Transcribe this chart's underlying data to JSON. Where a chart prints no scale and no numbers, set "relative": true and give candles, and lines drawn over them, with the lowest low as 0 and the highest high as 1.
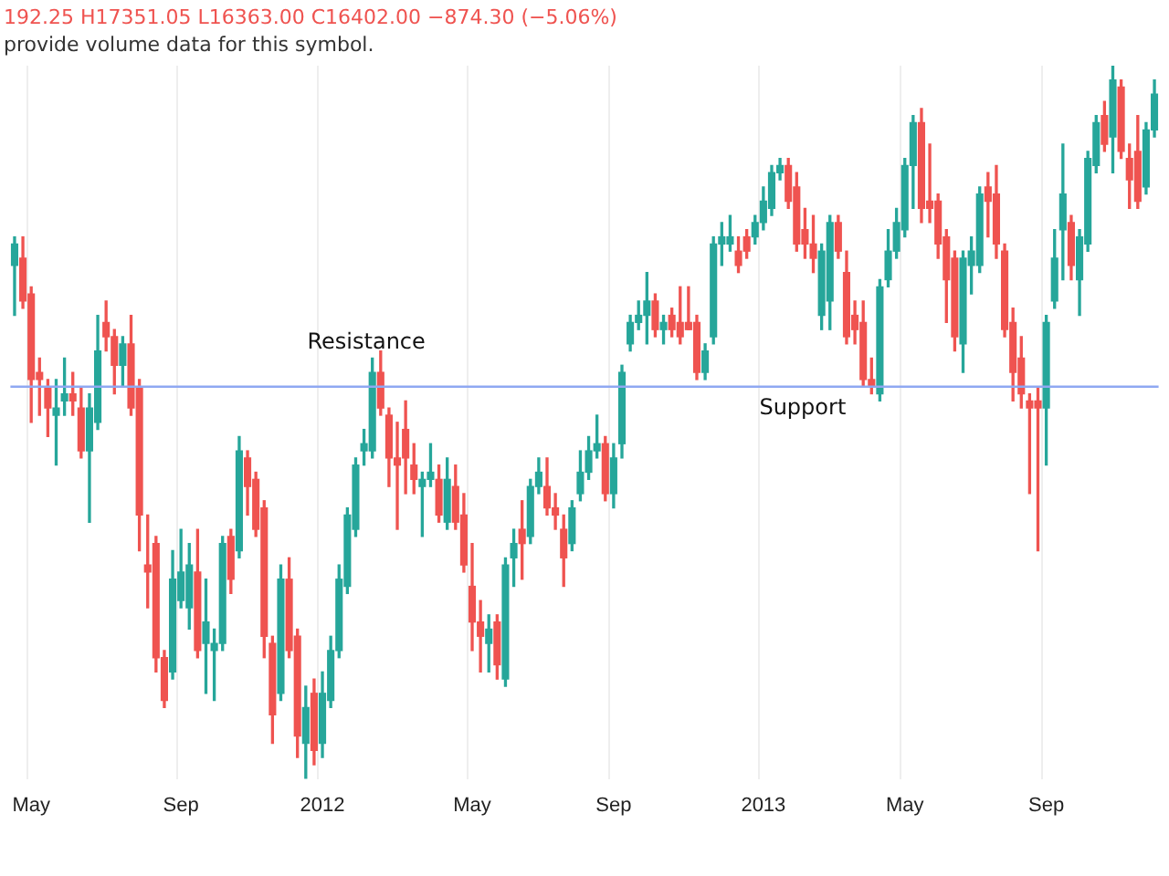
{
  "chart_data": {
    "type": "candlestick",
    "relative": true,
    "grid": "x",
    "legend": false,
    "categories": [
      null,
      null,
      "May",
      null,
      null,
      null,
      null,
      null,
      null,
      null,
      null,
      null,
      null,
      null,
      null,
      null,
      null,
      null,
      null,
      null,
      "Sep",
      null,
      null,
      null,
      null,
      null,
      null,
      null,
      null,
      null,
      null,
      null,
      null,
      null,
      null,
      null,
      null,
      "2012",
      null,
      null,
      null,
      null,
      null,
      null,
      null,
      null,
      null,
      null,
      null,
      null,
      null,
      null,
      null,
      null,
      null,
      "May",
      null,
      null,
      null,
      null,
      null,
      null,
      null,
      null,
      null,
      null,
      null,
      null,
      null,
      null,
      null,
      null,
      "Sep",
      null,
      null,
      null,
      null,
      null,
      null,
      null,
      null,
      null,
      null,
      null,
      null,
      null,
      null,
      null,
      null,
      null,
      "2013",
      null,
      null,
      null,
      null,
      null,
      null,
      null,
      null,
      null,
      null,
      null,
      null,
      null,
      null,
      null,
      null,
      "May",
      null,
      null,
      null,
      null,
      null,
      null,
      null,
      null,
      null,
      null,
      null,
      null,
      null,
      null,
      null,
      null,
      "Sep",
      null,
      null,
      null,
      null,
      null,
      null,
      null,
      null,
      null,
      null,
      null,
      null,
      null
    ],
    "ohlc": [
      [
        0.72,
        0.76,
        0.65,
        0.75
      ],
      [
        0.73,
        0.76,
        0.66,
        0.67
      ],
      [
        0.68,
        0.69,
        0.5,
        0.56
      ],
      [
        0.57,
        0.59,
        0.51,
        0.56
      ],
      [
        0.55,
        0.56,
        0.48,
        0.52
      ],
      [
        0.51,
        0.56,
        0.44,
        0.52
      ],
      [
        0.53,
        0.59,
        0.51,
        0.54
      ],
      [
        0.54,
        0.57,
        0.51,
        0.53
      ],
      [
        0.52,
        0.55,
        0.45,
        0.46
      ],
      [
        0.46,
        0.54,
        0.36,
        0.52
      ],
      [
        0.5,
        0.65,
        0.49,
        0.6
      ],
      [
        0.64,
        0.67,
        0.6,
        0.62
      ],
      [
        0.62,
        0.63,
        0.54,
        0.58
      ],
      [
        0.58,
        0.62,
        0.55,
        0.61
      ],
      [
        0.61,
        0.65,
        0.51,
        0.52
      ],
      [
        0.55,
        0.56,
        0.32,
        0.37
      ],
      [
        0.3,
        0.37,
        0.24,
        0.29
      ],
      [
        0.33,
        0.34,
        0.15,
        0.17
      ],
      [
        0.17,
        0.18,
        0.1,
        0.11
      ],
      [
        0.15,
        0.32,
        0.14,
        0.28
      ],
      [
        0.25,
        0.35,
        0.24,
        0.29
      ],
      [
        0.24,
        0.33,
        0.21,
        0.3
      ],
      [
        0.29,
        0.35,
        0.17,
        0.18
      ],
      [
        0.19,
        0.28,
        0.12,
        0.22
      ],
      [
        0.18,
        0.21,
        0.11,
        0.19
      ],
      [
        0.19,
        0.34,
        0.18,
        0.33
      ],
      [
        0.34,
        0.35,
        0.26,
        0.28
      ],
      [
        0.32,
        0.48,
        0.31,
        0.46
      ],
      [
        0.45,
        0.46,
        0.37,
        0.41
      ],
      [
        0.42,
        0.43,
        0.34,
        0.35
      ],
      [
        0.38,
        0.39,
        0.17,
        0.2
      ],
      [
        0.19,
        0.2,
        0.05,
        0.09
      ],
      [
        0.12,
        0.3,
        0.11,
        0.28
      ],
      [
        0.28,
        0.31,
        0.17,
        0.18
      ],
      [
        0.2,
        0.21,
        0.03,
        0.06
      ],
      [
        0.05,
        0.13,
        0.0,
        0.1
      ],
      [
        0.12,
        0.14,
        0.02,
        0.04
      ],
      [
        0.05,
        0.15,
        0.03,
        0.12
      ],
      [
        0.11,
        0.2,
        0.1,
        0.18
      ],
      [
        0.18,
        0.3,
        0.17,
        0.28
      ],
      [
        0.27,
        0.38,
        0.26,
        0.37
      ],
      [
        0.35,
        0.45,
        0.34,
        0.44
      ],
      [
        0.46,
        0.49,
        0.44,
        0.47
      ],
      [
        0.46,
        0.59,
        0.45,
        0.57
      ],
      [
        0.57,
        0.6,
        0.51,
        0.52
      ],
      [
        0.51,
        0.52,
        0.41,
        0.45
      ],
      [
        0.45,
        0.5,
        0.35,
        0.44
      ],
      [
        0.49,
        0.53,
        0.4,
        0.45
      ],
      [
        0.44,
        0.47,
        0.4,
        0.42
      ],
      [
        0.41,
        0.43,
        0.34,
        0.42
      ],
      [
        0.42,
        0.47,
        0.41,
        0.43
      ],
      [
        0.42,
        0.44,
        0.36,
        0.37
      ],
      [
        0.36,
        0.45,
        0.35,
        0.42
      ],
      [
        0.41,
        0.44,
        0.35,
        0.36
      ],
      [
        0.37,
        0.4,
        0.29,
        0.3
      ],
      [
        0.27,
        0.33,
        0.18,
        0.22
      ],
      [
        0.22,
        0.25,
        0.15,
        0.2
      ],
      [
        0.19,
        0.23,
        0.15,
        0.21
      ],
      [
        0.22,
        0.23,
        0.14,
        0.16
      ],
      [
        0.14,
        0.31,
        0.13,
        0.3
      ],
      [
        0.31,
        0.35,
        0.27,
        0.33
      ],
      [
        0.35,
        0.39,
        0.28,
        0.33
      ],
      [
        0.34,
        0.42,
        0.33,
        0.41
      ],
      [
        0.41,
        0.45,
        0.4,
        0.43
      ],
      [
        0.41,
        0.45,
        0.37,
        0.38
      ],
      [
        0.38,
        0.4,
        0.35,
        0.37
      ],
      [
        0.35,
        0.37,
        0.27,
        0.31
      ],
      [
        0.33,
        0.39,
        0.32,
        0.38
      ],
      [
        0.4,
        0.46,
        0.39,
        0.43
      ],
      [
        0.43,
        0.48,
        0.42,
        0.46
      ],
      [
        0.46,
        0.51,
        0.45,
        0.47
      ],
      [
        0.47,
        0.48,
        0.39,
        0.4
      ],
      [
        0.4,
        0.47,
        0.38,
        0.45
      ],
      [
        0.47,
        0.58,
        0.45,
        0.57
      ],
      [
        0.61,
        0.65,
        0.6,
        0.64
      ],
      [
        0.64,
        0.67,
        0.63,
        0.65
      ],
      [
        0.65,
        0.71,
        0.61,
        0.67
      ],
      [
        0.67,
        0.68,
        0.62,
        0.63
      ],
      [
        0.63,
        0.65,
        0.61,
        0.64
      ],
      [
        0.65,
        0.66,
        0.62,
        0.63
      ],
      [
        0.64,
        0.69,
        0.61,
        0.62
      ],
      [
        0.64,
        0.69,
        0.63,
        0.63
      ],
      [
        0.64,
        0.65,
        0.56,
        0.57
      ],
      [
        0.57,
        0.61,
        0.56,
        0.6
      ],
      [
        0.62,
        0.76,
        0.61,
        0.75
      ],
      [
        0.75,
        0.78,
        0.72,
        0.76
      ],
      [
        0.75,
        0.79,
        0.74,
        0.76
      ],
      [
        0.74,
        0.76,
        0.71,
        0.72
      ],
      [
        0.76,
        0.77,
        0.73,
        0.74
      ],
      [
        0.76,
        0.79,
        0.75,
        0.78
      ],
      [
        0.78,
        0.83,
        0.77,
        0.81
      ],
      [
        0.8,
        0.86,
        0.79,
        0.85
      ],
      [
        0.85,
        0.87,
        0.84,
        0.86
      ],
      [
        0.86,
        0.87,
        0.8,
        0.81
      ],
      [
        0.83,
        0.85,
        0.74,
        0.75
      ],
      [
        0.77,
        0.8,
        0.73,
        0.75
      ],
      [
        0.75,
        0.79,
        0.71,
        0.73
      ],
      [
        0.65,
        0.75,
        0.63,
        0.74
      ],
      [
        0.67,
        0.79,
        0.63,
        0.78
      ],
      [
        0.78,
        0.79,
        0.73,
        0.74
      ],
      [
        0.71,
        0.74,
        0.61,
        0.62
      ],
      [
        0.65,
        0.67,
        0.61,
        0.63
      ],
      [
        0.64,
        0.67,
        0.55,
        0.56
      ],
      [
        0.56,
        0.59,
        0.54,
        0.55
      ],
      [
        0.54,
        0.7,
        0.53,
        0.69
      ],
      [
        0.7,
        0.77,
        0.69,
        0.74
      ],
      [
        0.74,
        0.8,
        0.73,
        0.78
      ],
      [
        0.77,
        0.87,
        0.76,
        0.86
      ],
      [
        0.86,
        0.93,
        0.8,
        0.92
      ],
      [
        0.92,
        0.94,
        0.78,
        0.8
      ],
      [
        0.81,
        0.89,
        0.78,
        0.8
      ],
      [
        0.81,
        0.82,
        0.73,
        0.75
      ],
      [
        0.76,
        0.77,
        0.64,
        0.7
      ],
      [
        0.73,
        0.74,
        0.6,
        0.62
      ],
      [
        0.61,
        0.74,
        0.57,
        0.73
      ],
      [
        0.72,
        0.76,
        0.68,
        0.74
      ],
      [
        0.72,
        0.83,
        0.71,
        0.82
      ],
      [
        0.83,
        0.85,
        0.76,
        0.81
      ],
      [
        0.82,
        0.86,
        0.73,
        0.75
      ],
      [
        0.74,
        0.75,
        0.62,
        0.63
      ],
      [
        0.64,
        0.66,
        0.53,
        0.57
      ],
      [
        0.59,
        0.62,
        0.52,
        0.54
      ],
      [
        0.53,
        0.54,
        0.4,
        0.52
      ],
      [
        0.53,
        0.55,
        0.32,
        0.52
      ],
      [
        0.52,
        0.65,
        0.44,
        0.64
      ],
      [
        0.67,
        0.77,
        0.66,
        0.73
      ],
      [
        0.77,
        0.89,
        0.7,
        0.82
      ],
      [
        0.78,
        0.79,
        0.7,
        0.72
      ],
      [
        0.7,
        0.77,
        0.65,
        0.76
      ],
      [
        0.75,
        0.88,
        0.74,
        0.87
      ],
      [
        0.86,
        0.93,
        0.85,
        0.92
      ],
      [
        0.93,
        0.95,
        0.88,
        0.89
      ],
      [
        0.9,
        1.0,
        0.85,
        0.98
      ],
      [
        0.97,
        0.98,
        0.87,
        0.88
      ],
      [
        0.87,
        0.89,
        0.8,
        0.84
      ],
      [
        0.88,
        0.93,
        0.8,
        0.81
      ],
      [
        0.83,
        0.92,
        0.82,
        0.91
      ],
      [
        0.91,
        0.98,
        0.9,
        0.96
      ]
    ],
    "colors": [
      "#26a69a",
      "#ef5350",
      "#ef5350",
      "#ef5350",
      "#ef5350",
      "#26a69a",
      "#26a69a",
      "#ef5350",
      "#ef5350",
      "#26a69a",
      "#26a69a",
      "#ef5350",
      "#ef5350",
      "#26a69a",
      "#ef5350",
      "#ef5350",
      "#ef5350",
      "#ef5350",
      "#ef5350",
      "#26a69a",
      "#26a69a",
      "#26a69a",
      "#ef5350",
      "#26a69a",
      "#26a69a",
      "#26a69a",
      "#ef5350",
      "#26a69a",
      "#ef5350",
      "#ef5350",
      "#ef5350",
      "#ef5350",
      "#26a69a",
      "#ef5350",
      "#ef5350",
      "#26a69a",
      "#ef5350",
      "#26a69a",
      "#26a69a",
      "#26a69a",
      "#26a69a",
      "#26a69a",
      "#26a69a",
      "#26a69a",
      "#ef5350",
      "#ef5350",
      "#ef5350",
      "#ef5350",
      "#ef5350",
      "#26a69a",
      "#26a69a",
      "#ef5350",
      "#26a69a",
      "#ef5350",
      "#ef5350",
      "#ef5350",
      "#ef5350",
      "#26a69a",
      "#ef5350",
      "#26a69a",
      "#26a69a",
      "#ef5350",
      "#26a69a",
      "#26a69a",
      "#ef5350",
      "#ef5350",
      "#ef5350",
      "#26a69a",
      "#26a69a",
      "#26a69a",
      "#26a69a",
      "#ef5350",
      "#26a69a",
      "#26a69a",
      "#26a69a",
      "#26a69a",
      "#26a69a",
      "#ef5350",
      "#26a69a",
      "#ef5350",
      "#ef5350",
      "#ef5350",
      "#ef5350",
      "#26a69a",
      "#26a69a",
      "#26a69a",
      "#26a69a",
      "#ef5350",
      "#ef5350",
      "#26a69a",
      "#26a69a",
      "#26a69a",
      "#26a69a",
      "#ef5350",
      "#ef5350",
      "#ef5350",
      "#ef5350",
      "#26a69a",
      "#26a69a",
      "#ef5350",
      "#ef5350",
      "#ef5350",
      "#ef5350",
      "#ef5350",
      "#26a69a",
      "#26a69a",
      "#26a69a",
      "#26a69a",
      "#26a69a",
      "#ef5350",
      "#ef5350",
      "#ef5350",
      "#ef5350",
      "#ef5350",
      "#26a69a",
      "#26a69a",
      "#26a69a",
      "#ef5350",
      "#ef5350",
      "#ef5350",
      "#ef5350",
      "#ef5350",
      "#ef5350",
      "#ef5350",
      "#26a69a",
      "#26a69a",
      "#26a69a",
      "#ef5350",
      "#26a69a",
      "#26a69a",
      "#26a69a",
      "#ef5350",
      "#26a69a",
      "#ef5350",
      "#ef5350",
      "#ef5350",
      "#26a69a",
      "#26a69a"
    ],
    "ref_lines": [
      {
        "axis": "y",
        "value": 0.55,
        "label": "Resistance",
        "color": "#8fa8f2"
      }
    ],
    "annotations": [
      "192.25  H17351.05  L16363.00  C16402.00  −874.30 (−5.06%)",
      "provide volume data for this symbol.",
      {
        "text": "Support",
        "y": 0.55
      }
    ]
  }
}
